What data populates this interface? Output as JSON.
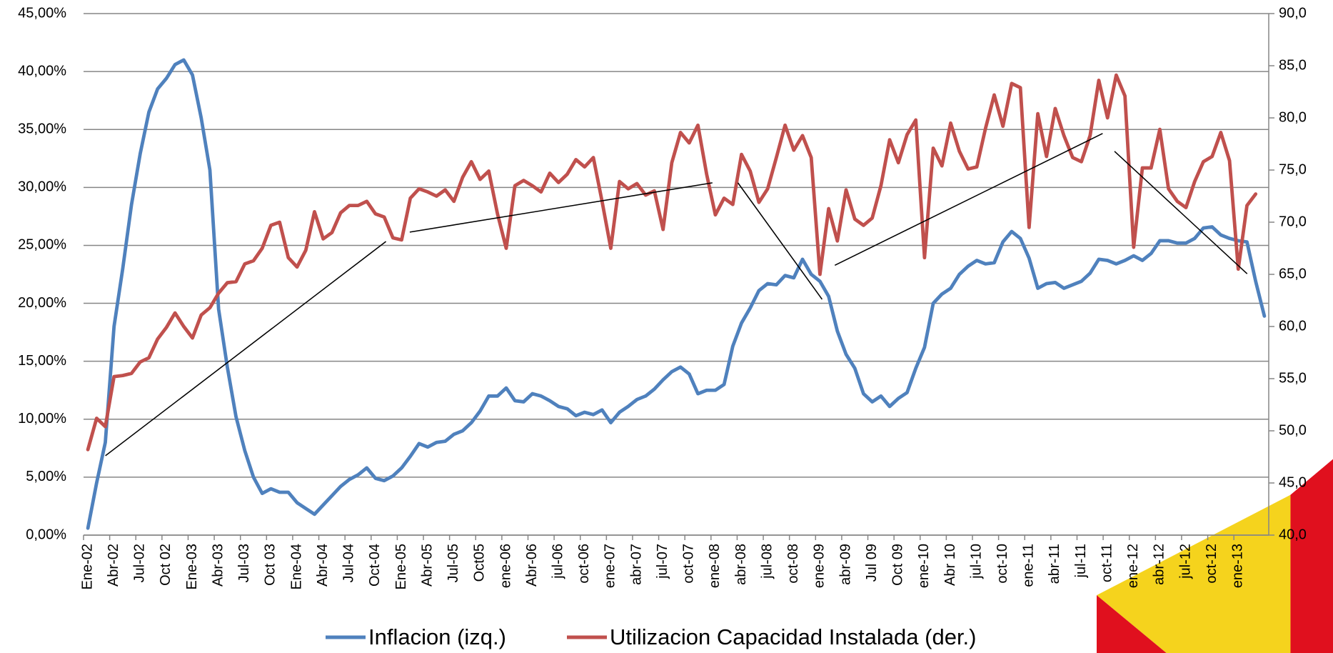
{
  "chart_data": {
    "type": "line",
    "categories": [
      "Ene-02",
      null,
      null,
      "Abr-02",
      null,
      null,
      "Jul-02",
      null,
      null,
      "Oct 02",
      null,
      null,
      "Ene-03",
      null,
      null,
      "Abr-03",
      null,
      null,
      "Jul-03",
      null,
      null,
      "Oct 03",
      null,
      null,
      "Ene-04",
      null,
      null,
      "Abr-04",
      null,
      null,
      "Jul-04",
      null,
      null,
      "Oct-04",
      null,
      null,
      "Ene-05",
      null,
      null,
      "Abr-05",
      null,
      null,
      "Jul-05",
      null,
      null,
      "Oct05",
      null,
      null,
      "ene-06",
      null,
      null,
      "Abr-06",
      null,
      null,
      "jul-06",
      null,
      null,
      "oct-06",
      null,
      null,
      "ene-07",
      null,
      null,
      "abr-07",
      null,
      null,
      "jul-07",
      null,
      null,
      "oct-07",
      null,
      null,
      "ene-08",
      null,
      null,
      "abr-08",
      null,
      null,
      "jul-08",
      null,
      null,
      "oct-08",
      null,
      null,
      "ene-09",
      null,
      null,
      "abr-09",
      null,
      null,
      "Jul 09",
      null,
      null,
      "Oct 09",
      null,
      null,
      "ene-10",
      null,
      null,
      "Abr 10",
      null,
      null,
      "jul-10",
      null,
      null,
      "oct-10",
      null,
      null,
      "ene-11",
      null,
      null,
      "abr-11",
      null,
      null,
      "jul-11",
      null,
      null,
      "oct-11",
      null,
      null,
      "ene-12",
      null,
      null,
      "abr-12",
      null,
      null,
      "jul-12",
      null,
      null,
      "oct-12",
      null,
      null,
      "ene-13",
      null,
      null,
      null
    ],
    "series": [
      {
        "name": "Inflacion (izq.)",
        "color": "#4f81bd",
        "axis": "y",
        "values": [
          0.6,
          4.5,
          8.0,
          18.0,
          23.0,
          28.5,
          32.9,
          36.5,
          38.5,
          39.4,
          40.6,
          41.0,
          39.7,
          36.0,
          31.5,
          19.5,
          14.5,
          10.2,
          7.3,
          5.0,
          3.6,
          4.0,
          3.7,
          3.7,
          2.8,
          2.3,
          1.8,
          2.6,
          3.4,
          4.2,
          4.8,
          5.2,
          5.8,
          4.9,
          4.7,
          5.1,
          5.8,
          6.8,
          7.9,
          7.6,
          8.0,
          8.1,
          8.7,
          9.0,
          9.7,
          10.7,
          12.0,
          12.0,
          12.7,
          11.6,
          11.5,
          12.2,
          12.0,
          11.6,
          11.1,
          10.9,
          10.3,
          10.6,
          10.4,
          10.8,
          9.7,
          10.6,
          11.1,
          11.7,
          12.0,
          12.6,
          13.4,
          14.1,
          14.5,
          13.9,
          12.2,
          12.5,
          12.5,
          13.0,
          16.3,
          18.3,
          19.6,
          21.1,
          21.7,
          21.6,
          22.4,
          22.2,
          23.8,
          22.5,
          21.9,
          20.6,
          17.6,
          15.6,
          14.4,
          12.2,
          11.5,
          12.0,
          11.1,
          11.8,
          12.3,
          14.4,
          16.2,
          20.0,
          20.8,
          21.3,
          22.5,
          23.2,
          23.7,
          23.4,
          23.5,
          25.3,
          26.2,
          25.6,
          23.9,
          21.3,
          21.7,
          21.8,
          21.3,
          21.6,
          21.9,
          22.6,
          23.8,
          23.7,
          23.4,
          23.7,
          24.1,
          23.7,
          24.3,
          25.4,
          25.4,
          25.2,
          25.2,
          25.6,
          26.5,
          26.6,
          25.9,
          25.6,
          25.4,
          25.3,
          21.9,
          18.9
        ]
      },
      {
        "name": "Utilizacion Capacidad Instalada (der.)",
        "color": "#c0504d",
        "axis": "y2",
        "values": [
          48.2,
          51.2,
          50.4,
          55.2,
          55.3,
          55.5,
          56.6,
          57.0,
          58.8,
          59.9,
          61.3,
          60.0,
          58.9,
          61.1,
          61.8,
          63.2,
          64.2,
          64.3,
          66.0,
          66.3,
          67.5,
          69.7,
          70.0,
          66.6,
          65.7,
          67.3,
          71.0,
          68.4,
          69.0,
          70.9,
          71.6,
          71.6,
          72.0,
          70.8,
          70.5,
          68.5,
          68.3,
          72.3,
          73.2,
          72.9,
          72.5,
          73.1,
          72.0,
          74.3,
          75.8,
          74.1,
          74.9,
          70.8,
          67.5,
          73.5,
          74.0,
          73.5,
          72.9,
          74.7,
          73.8,
          74.6,
          76.0,
          75.3,
          76.2,
          72.0,
          67.5,
          73.9,
          73.2,
          73.7,
          72.6,
          73.0,
          69.3,
          75.7,
          78.6,
          77.6,
          79.3,
          74.6,
          70.7,
          72.3,
          71.7,
          76.5,
          74.9,
          71.9,
          73.2,
          76.2,
          79.3,
          76.9,
          78.3,
          76.2,
          65.0,
          71.3,
          68.2,
          73.1,
          70.3,
          69.7,
          70.4,
          73.5,
          77.9,
          75.7,
          78.4,
          79.8,
          66.6,
          77.1,
          75.4,
          79.5,
          76.8,
          75.1,
          75.3,
          79.0,
          82.2,
          79.2,
          83.3,
          82.9,
          69.5,
          80.4,
          76.3,
          80.9,
          78.3,
          76.2,
          75.8,
          78.3,
          83.6,
          80.0,
          84.1,
          82.1,
          67.6,
          75.2,
          75.2,
          78.9,
          73.2,
          72.0,
          71.4,
          73.9,
          75.8,
          76.3,
          78.6,
          75.9,
          65.5,
          71.6,
          72.7,
          null
        ]
      }
    ],
    "ylim": [
      0,
      45
    ],
    "yticks": [
      {
        "value": 0,
        "label": "0,00%"
      },
      {
        "value": 5,
        "label": "5,00%"
      },
      {
        "value": 10,
        "label": "10,00%"
      },
      {
        "value": 15,
        "label": "15,00%"
      },
      {
        "value": 20,
        "label": "20,00%"
      },
      {
        "value": 25,
        "label": "25,00%"
      },
      {
        "value": 30,
        "label": "30,00%"
      },
      {
        "value": 35,
        "label": "35,00%"
      },
      {
        "value": 40,
        "label": "40,00%"
      },
      {
        "value": 45,
        "label": "45,00%"
      }
    ],
    "y2lim": [
      40,
      90
    ],
    "y2ticks": [
      {
        "value": 40,
        "label": "40,0"
      },
      {
        "value": 45,
        "label": "45,0"
      },
      {
        "value": 50,
        "label": "50,0"
      },
      {
        "value": 55,
        "label": "55,0"
      },
      {
        "value": 60,
        "label": "60,0"
      },
      {
        "value": 65,
        "label": "65,0"
      },
      {
        "value": 70,
        "label": "70,0"
      },
      {
        "value": 75,
        "label": "75,0"
      },
      {
        "value": 80,
        "label": "80,0"
      },
      {
        "value": 85,
        "label": "85,0"
      },
      {
        "value": 90,
        "label": "90,0"
      }
    ],
    "grid": true,
    "legend": "bottom"
  }
}
